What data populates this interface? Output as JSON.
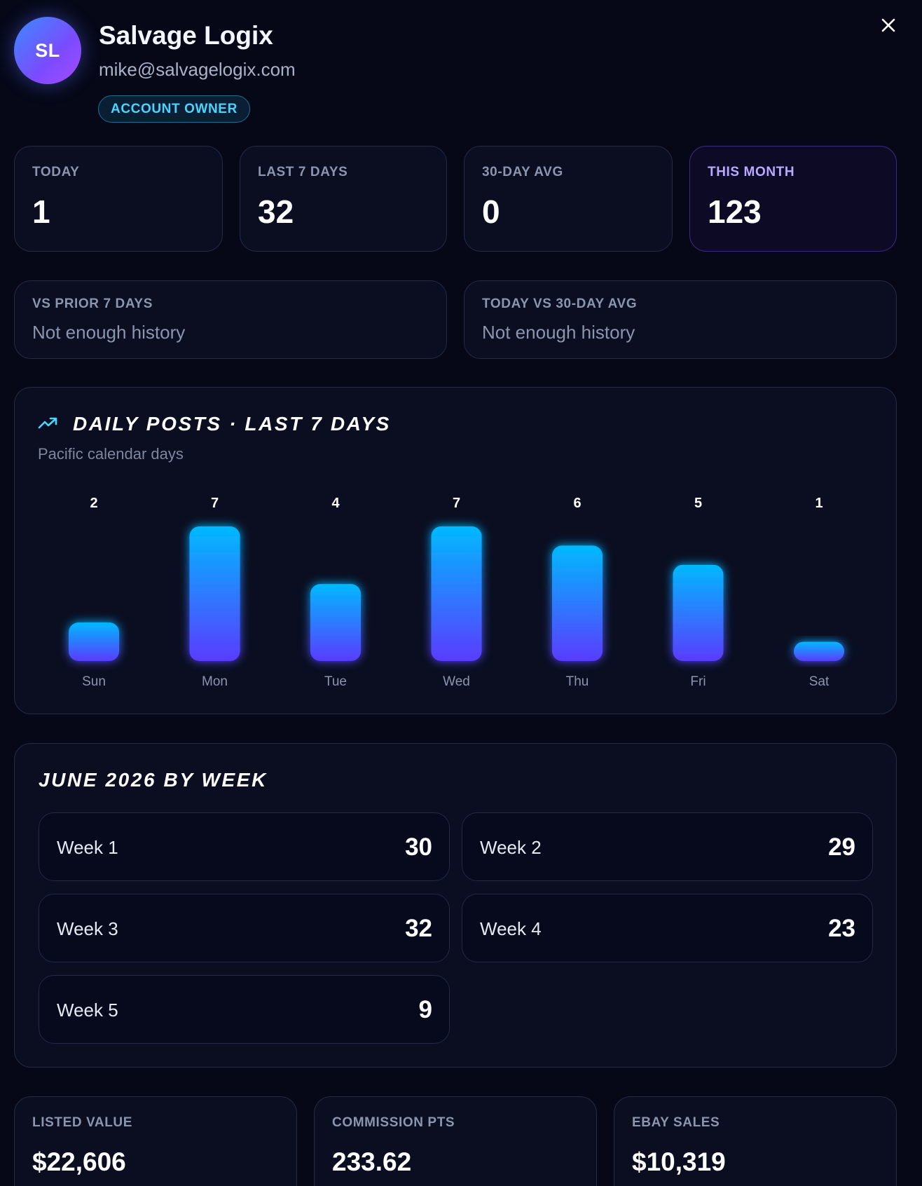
{
  "profile": {
    "initials": "SL",
    "name": "Salvage Logix",
    "email": "mike@salvagelogix.com",
    "role": "ACCOUNT OWNER"
  },
  "stats": [
    {
      "label": "TODAY",
      "value": "1"
    },
    {
      "label": "LAST 7 DAYS",
      "value": "32"
    },
    {
      "label": "30-DAY AVG",
      "value": "0"
    },
    {
      "label": "THIS MONTH",
      "value": "123"
    }
  ],
  "comparisons": [
    {
      "label": "VS PRIOR 7 DAYS",
      "text": "Not enough history"
    },
    {
      "label": "TODAY VS 30-DAY AVG",
      "text": "Not enough history"
    }
  ],
  "daily_chart": {
    "title": "DAILY POSTS · LAST 7 DAYS",
    "subtitle": "Pacific calendar days",
    "icon": "trending-up-icon"
  },
  "chart_data": {
    "type": "bar",
    "title": "DAILY POSTS · LAST 7 DAYS",
    "subtitle": "Pacific calendar days",
    "categories": [
      "Sun",
      "Mon",
      "Tue",
      "Wed",
      "Thu",
      "Fri",
      "Sat"
    ],
    "values": [
      2,
      7,
      4,
      7,
      6,
      5,
      1
    ],
    "ylim": [
      0,
      7
    ],
    "grid": false,
    "colors": {
      "top": "#00b9ff",
      "bottom": "#5a3cff"
    }
  },
  "weekly": {
    "title": "JUNE 2026 BY WEEK",
    "weeks": [
      {
        "label": "Week 1",
        "value": "30"
      },
      {
        "label": "Week 2",
        "value": "29"
      },
      {
        "label": "Week 3",
        "value": "32"
      },
      {
        "label": "Week 4",
        "value": "23"
      },
      {
        "label": "Week 5",
        "value": "9"
      }
    ]
  },
  "summary": [
    {
      "label": "LISTED VALUE",
      "value": "$22,606"
    },
    {
      "label": "COMMISSION PTS",
      "value": "233.62"
    },
    {
      "label": "EBAY SALES",
      "value": "$10,319"
    }
  ],
  "colors": {
    "background": "#060818",
    "accent_cyan": "#48d5ff",
    "accent_purple": "#7b4bff"
  }
}
